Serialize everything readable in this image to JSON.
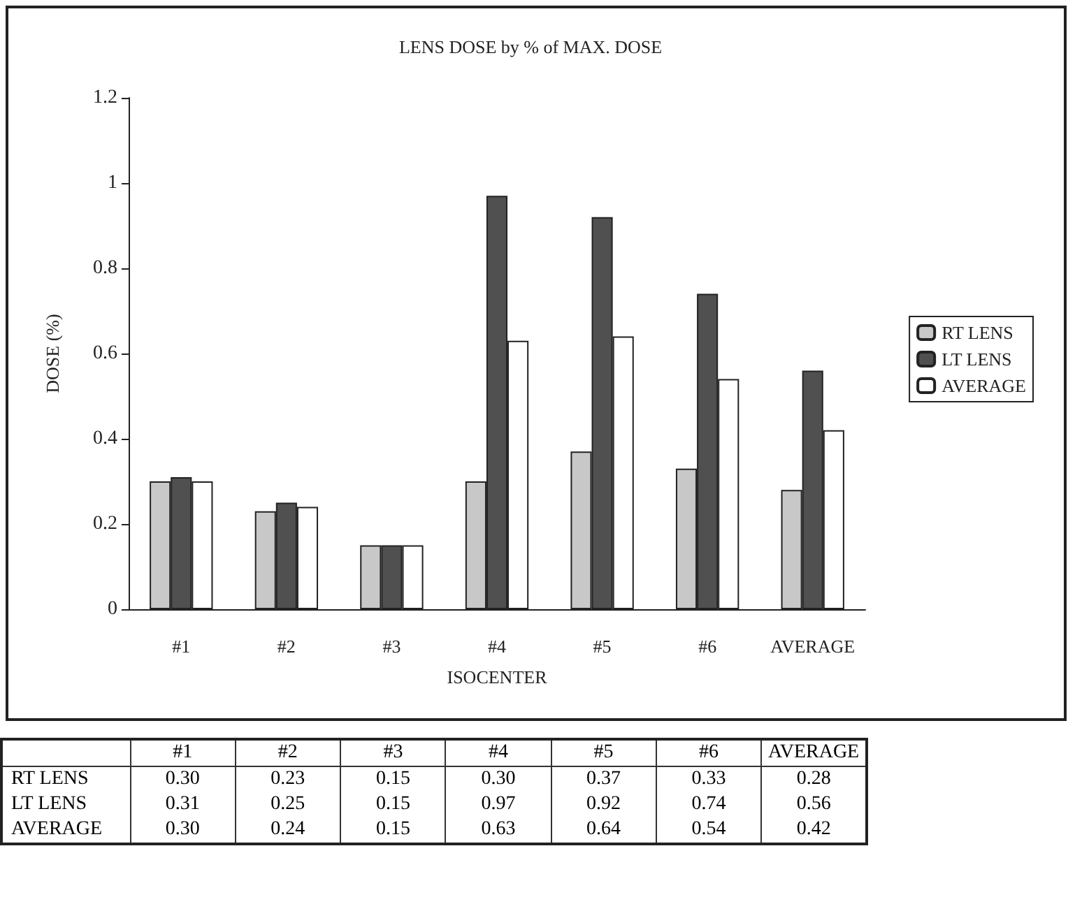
{
  "chart_data": {
    "type": "bar",
    "title": "LENS DOSE by % of MAX. DOSE",
    "xlabel": "ISOCENTER",
    "ylabel": "DOSE (%)",
    "categories": [
      "#1",
      "#2",
      "#3",
      "#4",
      "#5",
      "#6",
      "AVERAGE"
    ],
    "series": [
      {
        "name": "RT LENS",
        "color": "#c8c8c8",
        "values": [
          0.3,
          0.23,
          0.15,
          0.3,
          0.37,
          0.33,
          0.28
        ],
        "value_labels": [
          "0.30",
          "0.23",
          "0.15",
          "0.30",
          "0.37",
          "0.33",
          "0.28"
        ]
      },
      {
        "name": "LT LENS",
        "color": "#505050",
        "values": [
          0.31,
          0.25,
          0.15,
          0.97,
          0.92,
          0.74,
          0.56
        ],
        "value_labels": [
          "0.31",
          "0.25",
          "0.15",
          "0.97",
          "0.92",
          "0.74",
          "0.56"
        ]
      },
      {
        "name": "AVERAGE",
        "color": "#ffffff",
        "values": [
          0.3,
          0.24,
          0.15,
          0.63,
          0.64,
          0.54,
          0.42
        ],
        "value_labels": [
          "0.30",
          "0.24",
          "0.15",
          "0.63",
          "0.64",
          "0.54",
          "0.42"
        ]
      }
    ],
    "ylim": [
      0,
      1.2
    ],
    "yticks": [
      0,
      0.2,
      0.4,
      0.6,
      0.8,
      1,
      1.2
    ],
    "grid": false,
    "legend": "right"
  }
}
